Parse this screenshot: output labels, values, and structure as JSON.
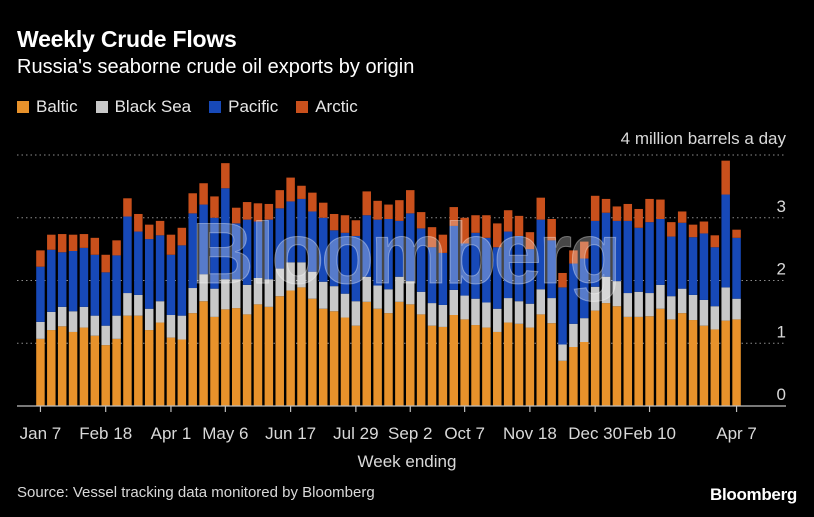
{
  "chart_data": {
    "type": "bar",
    "stacked": true,
    "title": "Weekly Crude Flows",
    "subtitle": "Russia's seaborne crude oil exports by origin",
    "xlabel": "Week ending",
    "ylabel": "",
    "unit_label": "4 million barrels a day",
    "ylim": [
      0,
      4
    ],
    "y_ticks": [
      "0",
      "1",
      "2",
      "3"
    ],
    "x_tick_labels": [
      "Jan 7",
      "Feb 18",
      "Apr 1",
      "May 6",
      "Jun 17",
      "Jul 29",
      "Sep 2",
      "Oct 7",
      "Nov 18",
      "Dec 30",
      "Feb 10",
      "Apr 7"
    ],
    "x_tick_indices": [
      0,
      6,
      12,
      17,
      23,
      29,
      34,
      39,
      45,
      51,
      56,
      64
    ],
    "grid": "horizontal-dotted",
    "legend_position": "top-left",
    "series": [
      {
        "name": "Baltic",
        "color": "#e8922b",
        "values": [
          1.07,
          1.21,
          1.27,
          1.18,
          1.25,
          1.12,
          0.97,
          1.07,
          1.44,
          1.44,
          1.21,
          1.33,
          1.09,
          1.06,
          1.48,
          1.67,
          1.42,
          1.54,
          1.56,
          1.46,
          1.62,
          1.58,
          1.75,
          1.84,
          1.89,
          1.71,
          1.55,
          1.51,
          1.41,
          1.28,
          1.66,
          1.55,
          1.48,
          1.66,
          1.62,
          1.46,
          1.28,
          1.26,
          1.45,
          1.38,
          1.29,
          1.25,
          1.18,
          1.33,
          1.31,
          1.25,
          1.46,
          1.32,
          0.72,
          0.94,
          1.02,
          1.52,
          1.64,
          1.59,
          1.42,
          1.42,
          1.43,
          1.55,
          1.38,
          1.48,
          1.37,
          1.28,
          1.22,
          1.36,
          1.38
        ]
      },
      {
        "name": "Black Sea",
        "color": "#c8c8c8",
        "values": [
          0.27,
          0.29,
          0.31,
          0.33,
          0.33,
          0.32,
          0.31,
          0.37,
          0.36,
          0.33,
          0.34,
          0.34,
          0.36,
          0.38,
          0.4,
          0.43,
          0.45,
          0.48,
          0.46,
          0.47,
          0.42,
          0.44,
          0.44,
          0.45,
          0.4,
          0.43,
          0.43,
          0.4,
          0.38,
          0.39,
          0.4,
          0.37,
          0.38,
          0.4,
          0.37,
          0.36,
          0.36,
          0.35,
          0.4,
          0.38,
          0.42,
          0.4,
          0.37,
          0.39,
          0.36,
          0.38,
          0.4,
          0.4,
          0.26,
          0.37,
          0.38,
          0.38,
          0.42,
          0.4,
          0.38,
          0.4,
          0.37,
          0.38,
          0.37,
          0.39,
          0.4,
          0.41,
          0.37,
          0.53,
          0.33
        ]
      },
      {
        "name": "Pacific",
        "color": "#1749b8",
        "values": [
          0.88,
          0.99,
          0.87,
          0.96,
          0.94,
          0.97,
          0.85,
          0.96,
          1.22,
          1.01,
          1.11,
          1.05,
          0.96,
          1.12,
          1.19,
          1.11,
          1.13,
          1.45,
          0.89,
          1.04,
          0.9,
          0.95,
          0.96,
          0.97,
          1.01,
          0.96,
          1.02,
          0.89,
          0.97,
          1.04,
          0.98,
          1.05,
          1.12,
          0.89,
          1.08,
          1.01,
          0.89,
          0.83,
          1.02,
          0.83,
          1.05,
          1.03,
          0.98,
          1.06,
          1.04,
          0.87,
          1.11,
          0.92,
          0.91,
          0.96,
          0.95,
          1.05,
          1.02,
          0.96,
          1.15,
          1.02,
          1.13,
          1.05,
          0.95,
          1.05,
          0.92,
          1.06,
          0.94,
          1.48,
          0.97
        ]
      },
      {
        "name": "Arctic",
        "color": "#c9501c",
        "values": [
          0.26,
          0.24,
          0.29,
          0.26,
          0.22,
          0.27,
          0.28,
          0.24,
          0.29,
          0.28,
          0.23,
          0.23,
          0.32,
          0.28,
          0.32,
          0.34,
          0.34,
          0.4,
          0.25,
          0.28,
          0.29,
          0.25,
          0.29,
          0.38,
          0.21,
          0.3,
          0.24,
          0.26,
          0.28,
          0.25,
          0.38,
          0.3,
          0.23,
          0.33,
          0.37,
          0.26,
          0.32,
          0.29,
          0.3,
          0.41,
          0.28,
          0.36,
          0.38,
          0.34,
          0.32,
          0.27,
          0.35,
          0.34,
          0.23,
          0.21,
          0.27,
          0.4,
          0.22,
          0.23,
          0.27,
          0.3,
          0.37,
          0.31,
          0.23,
          0.18,
          0.2,
          0.19,
          0.19,
          0.54,
          0.13
        ]
      }
    ],
    "watermark": "Bloomberg"
  },
  "footer": {
    "source": "Source: Vessel tracking data monitored by Bloomberg",
    "brand": "Bloomberg"
  }
}
